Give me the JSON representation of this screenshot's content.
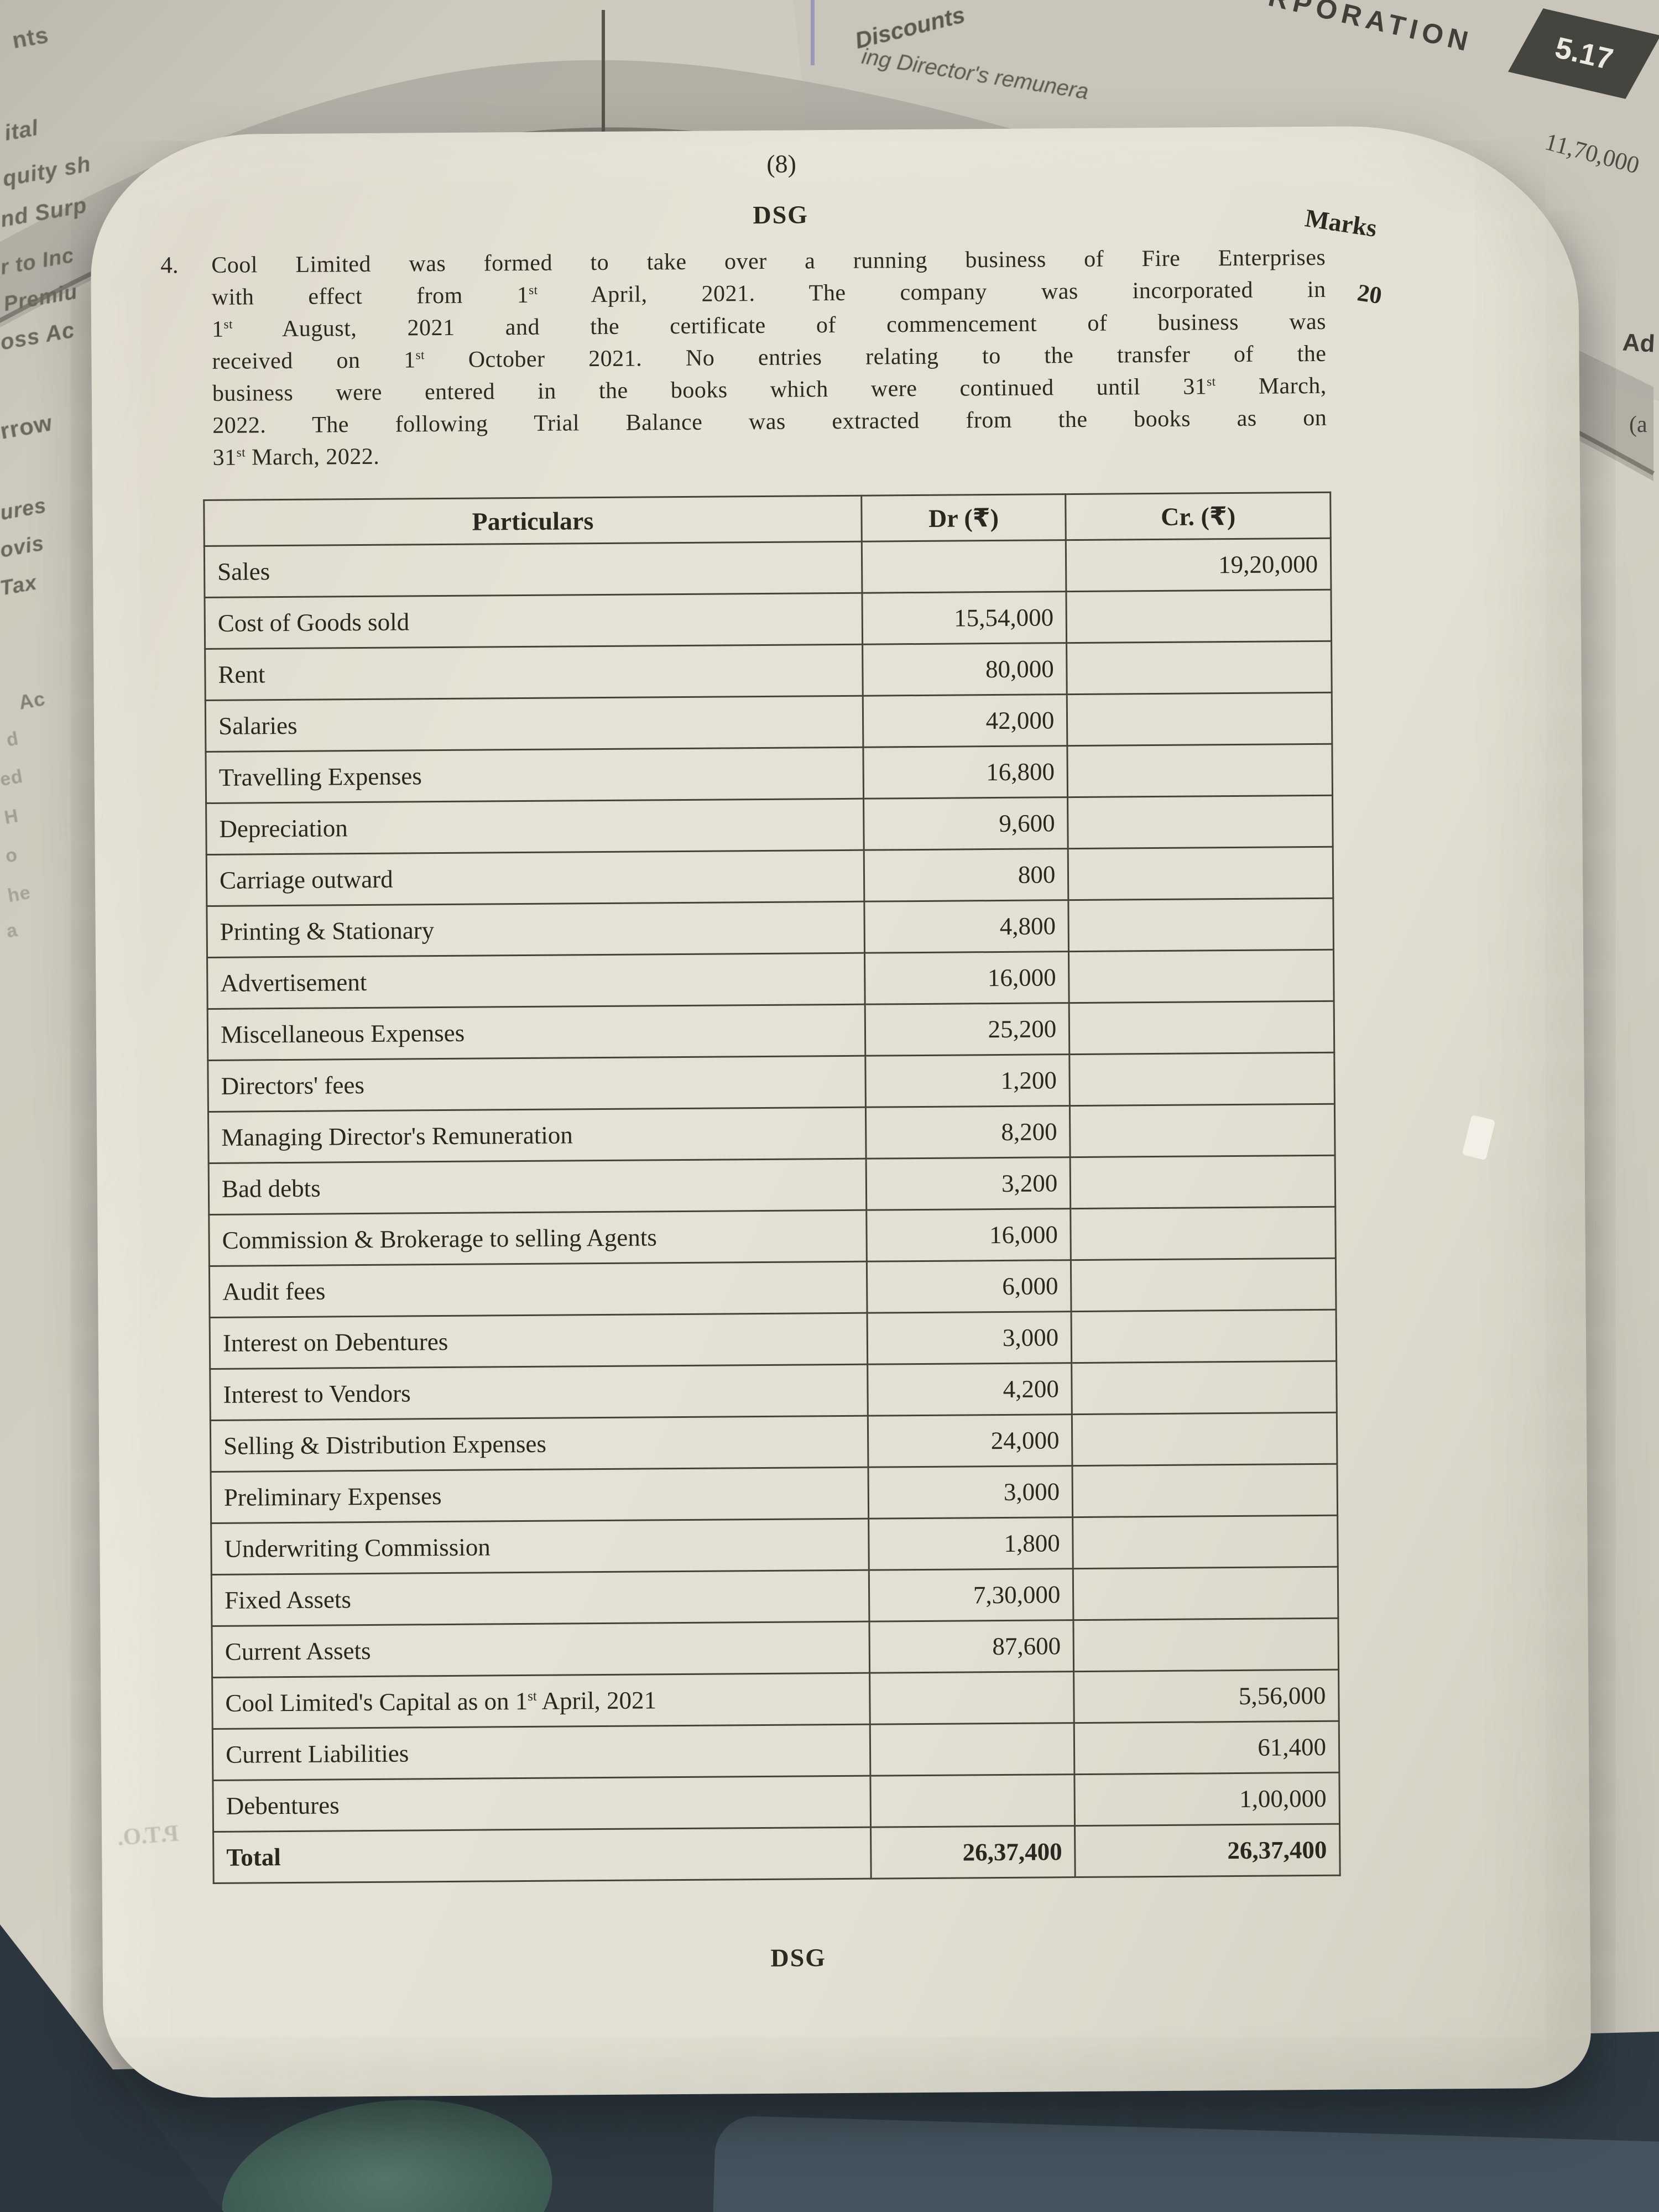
{
  "page": {
    "page_number": "(8)",
    "header_mark": "DSG",
    "footer_mark": "DSG",
    "marks_label": "Marks",
    "marks_value": "20",
    "question_number": "4.",
    "question_lines": [
      "Cool Limited was formed to take over a running business of Fire Enterprises",
      "with effect from 1st April, 2021. The company was incorporated in",
      "1st August, 2021 and the certificate of commencement of business was",
      "received on 1st October 2021. No entries relating to the transfer of the",
      "business were entered in the books which were continued until 31st March,",
      "2022. The following Trial Balance was extracted from the books as on",
      "31st March, 2022."
    ],
    "pto_label": "P.T.O."
  },
  "trial_balance": {
    "headers": {
      "particulars": "Particulars",
      "dr": "Dr (₹)",
      "cr": "Cr. (₹)"
    },
    "rows": [
      {
        "particulars": "Sales",
        "dr": "",
        "cr": "19,20,000"
      },
      {
        "particulars": "Cost of Goods sold",
        "dr": "15,54,000",
        "cr": ""
      },
      {
        "particulars": "Rent",
        "dr": "80,000",
        "cr": ""
      },
      {
        "particulars": "Salaries",
        "dr": "42,000",
        "cr": ""
      },
      {
        "particulars": "Travelling Expenses",
        "dr": "16,800",
        "cr": ""
      },
      {
        "particulars": "Depreciation",
        "dr": "9,600",
        "cr": ""
      },
      {
        "particulars": "Carriage outward",
        "dr": "800",
        "cr": ""
      },
      {
        "particulars": "Printing & Stationary",
        "dr": "4,800",
        "cr": ""
      },
      {
        "particulars": "Advertisement",
        "dr": "16,000",
        "cr": ""
      },
      {
        "particulars": "Miscellaneous Expenses",
        "dr": "25,200",
        "cr": ""
      },
      {
        "particulars": "Directors' fees",
        "dr": "1,200",
        "cr": ""
      },
      {
        "particulars": "Managing Director's Remuneration",
        "dr": "8,200",
        "cr": ""
      },
      {
        "particulars": "Bad debts",
        "dr": "3,200",
        "cr": ""
      },
      {
        "particulars": "Commission & Brokerage to selling Agents",
        "dr": "16,000",
        "cr": ""
      },
      {
        "particulars": "Audit fees",
        "dr": "6,000",
        "cr": ""
      },
      {
        "particulars": "Interest on Debentures",
        "dr": "3,000",
        "cr": ""
      },
      {
        "particulars": "Interest to Vendors",
        "dr": "4,200",
        "cr": ""
      },
      {
        "particulars": "Selling & Distribution Expenses",
        "dr": "24,000",
        "cr": ""
      },
      {
        "particulars": "Preliminary Expenses",
        "dr": "3,000",
        "cr": ""
      },
      {
        "particulars": "Underwriting Commission",
        "dr": "1,800",
        "cr": ""
      },
      {
        "particulars": "Fixed Assets",
        "dr": "7,30,000",
        "cr": ""
      },
      {
        "particulars": "Current Assets",
        "dr": "87,600",
        "cr": ""
      },
      {
        "particulars": "Cool Limited's Capital as on 1st April, 2021",
        "dr": "",
        "cr": "5,56,000"
      },
      {
        "particulars": "Current Liabilities",
        "dr": "",
        "cr": "61,400"
      },
      {
        "particulars": "Debentures",
        "dr": "",
        "cr": "1,00,000"
      },
      {
        "particulars": "Total",
        "dr": "26,37,400",
        "cr": "26,37,400"
      }
    ]
  },
  "surroundings": {
    "top_right_header_fragment": "RPORATION",
    "page_badge": "5.17",
    "top_amount_fragment": "11,70,000",
    "underlying_line1": "Discounts",
    "underlying_line2": "ing Director's remunera",
    "right_edge_fragments": [
      "Ad",
      "(a"
    ],
    "left_edge_fragments": [
      "nts",
      "ital",
      "quity sh",
      "nd Surp",
      "r to Inc",
      "Premiu",
      "oss Ac",
      "rrow",
      "ures",
      "ovis",
      "Tax",
      "Ac",
      "d",
      "ed",
      "H",
      "o",
      "he",
      "a"
    ]
  },
  "colors": {
    "paper": "#e4e1d4",
    "underlying_page": "#d0ccbf",
    "ink": "#2b2a22",
    "badge_bg": "#454540",
    "background_dark": "#2f3a42"
  }
}
